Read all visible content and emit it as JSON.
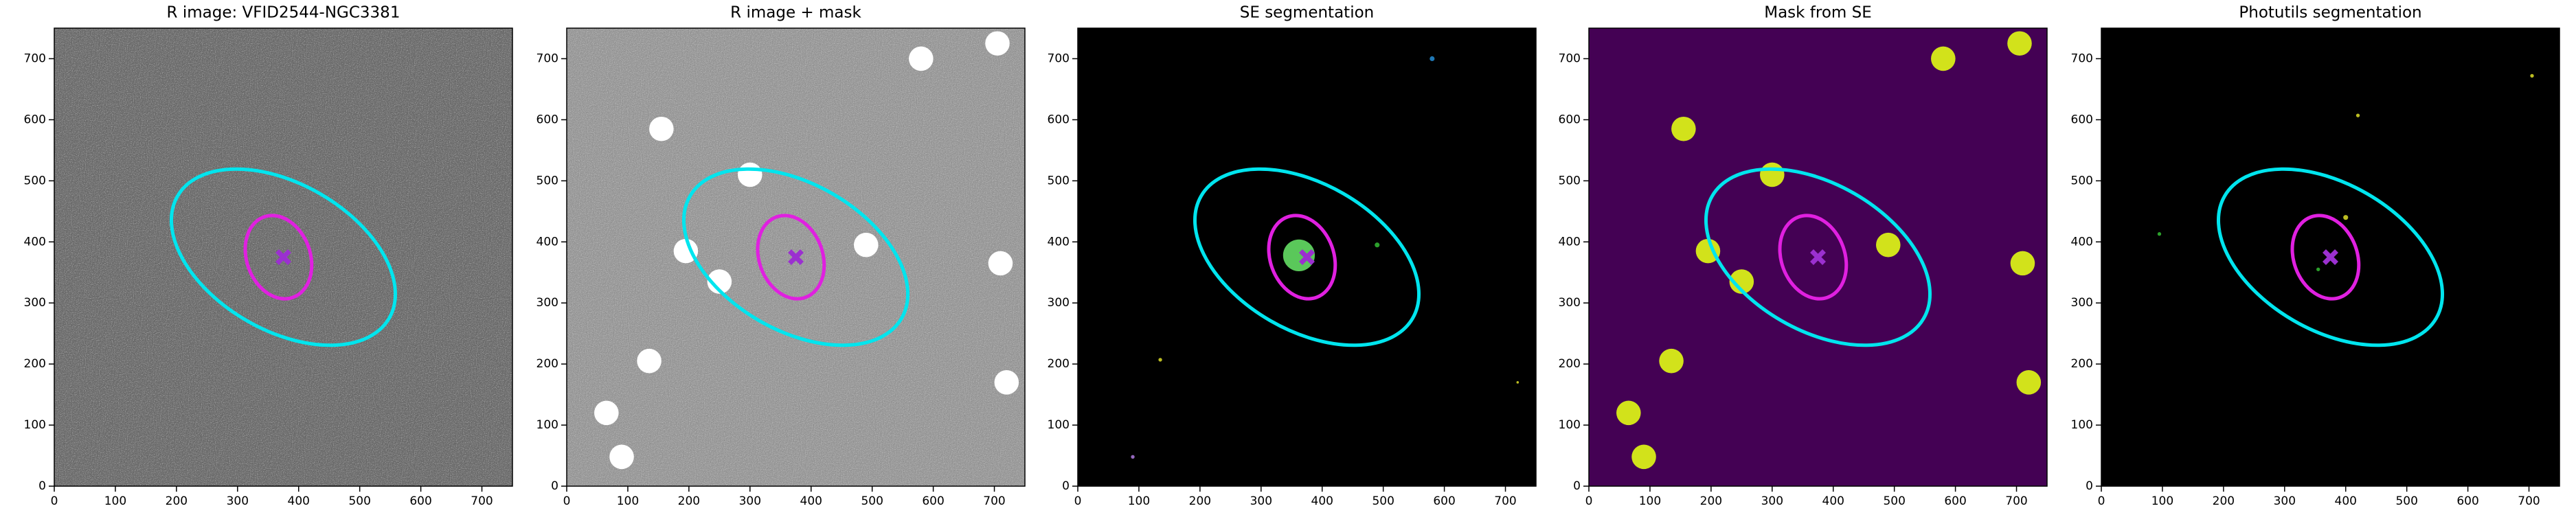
{
  "chart_data": [
    {
      "type": "image",
      "title": "R image: VFID2544-NGC3381",
      "background": "#6e6e6e",
      "noise": true,
      "xlim": [
        0,
        750
      ],
      "ylim": [
        0,
        750
      ],
      "xticks": [
        0,
        100,
        200,
        300,
        400,
        500,
        600,
        700
      ],
      "yticks": [
        0,
        100,
        200,
        300,
        400,
        500,
        600,
        700
      ],
      "ellipses": [
        {
          "color": "#00e5ee",
          "x": 375,
          "y": 375,
          "a": 200,
          "b": 120,
          "angle": -30
        },
        {
          "color": "#e020e0",
          "x": 367,
          "y": 375,
          "a": 70,
          "b": 52,
          "angle": -70
        }
      ],
      "marker": {
        "color": "#9b30d0",
        "x": 375,
        "y": 375
      }
    },
    {
      "type": "image",
      "title": "R image + mask",
      "background": "#9a9a9a",
      "noise": true,
      "xlim": [
        0,
        750
      ],
      "ylim": [
        0,
        750
      ],
      "xticks": [
        0,
        100,
        200,
        300,
        400,
        500,
        600,
        700
      ],
      "yticks": [
        0,
        100,
        200,
        300,
        400,
        500,
        600,
        700
      ],
      "masks": {
        "color": "#ffffff",
        "radius": 20,
        "x": [
          155,
          300,
          195,
          250,
          490,
          580,
          705,
          710,
          720,
          135,
          65,
          90
        ],
        "y": [
          585,
          510,
          385,
          335,
          395,
          700,
          725,
          365,
          170,
          205,
          120,
          48
        ]
      },
      "ellipses": [
        {
          "color": "#00e5ee",
          "x": 375,
          "y": 375,
          "a": 200,
          "b": 120,
          "angle": -30
        },
        {
          "color": "#e020e0",
          "x": 367,
          "y": 375,
          "a": 70,
          "b": 52,
          "angle": -70
        }
      ],
      "marker": {
        "color": "#9b30d0",
        "x": 375,
        "y": 375
      }
    },
    {
      "type": "image",
      "title": "SE segmentation",
      "background": "#000000",
      "xlim": [
        0,
        750
      ],
      "ylim": [
        0,
        750
      ],
      "xticks": [
        0,
        100,
        200,
        300,
        400,
        500,
        600,
        700
      ],
      "yticks": [
        0,
        100,
        200,
        300,
        400,
        500,
        600,
        700
      ],
      "segments": [
        {
          "color": "#5ac85a",
          "x": 362,
          "y": 378,
          "r": 26
        },
        {
          "color": "#1f77b4",
          "x": 580,
          "y": 700,
          "r": 4
        },
        {
          "color": "#2ca02c",
          "x": 490,
          "y": 395,
          "r": 4
        },
        {
          "color": "#bcbd22",
          "x": 135,
          "y": 207,
          "r": 3
        },
        {
          "color": "#9467bd",
          "x": 90,
          "y": 48,
          "r": 3
        },
        {
          "color": "#bcbd22",
          "x": 720,
          "y": 170,
          "r": 2
        }
      ],
      "ellipses": [
        {
          "color": "#00e5ee",
          "x": 375,
          "y": 375,
          "a": 200,
          "b": 120,
          "angle": -30
        },
        {
          "color": "#e020e0",
          "x": 367,
          "y": 375,
          "a": 70,
          "b": 52,
          "angle": -70
        }
      ],
      "marker": {
        "color": "#9b30d0",
        "x": 375,
        "y": 375
      }
    },
    {
      "type": "image",
      "title": "Mask from SE",
      "background": "#440154",
      "xlim": [
        0,
        750
      ],
      "ylim": [
        0,
        750
      ],
      "xticks": [
        0,
        100,
        200,
        300,
        400,
        500,
        600,
        700
      ],
      "yticks": [
        0,
        100,
        200,
        300,
        400,
        500,
        600,
        700
      ],
      "masks": {
        "color": "#d2e21b",
        "radius": 20,
        "x": [
          155,
          300,
          195,
          250,
          490,
          580,
          705,
          710,
          720,
          135,
          65,
          90
        ],
        "y": [
          585,
          510,
          385,
          335,
          395,
          700,
          725,
          365,
          170,
          205,
          120,
          48
        ]
      },
      "ellipses": [
        {
          "color": "#00e5ee",
          "x": 375,
          "y": 375,
          "a": 200,
          "b": 120,
          "angle": -30
        },
        {
          "color": "#e020e0",
          "x": 367,
          "y": 375,
          "a": 70,
          "b": 52,
          "angle": -70
        }
      ],
      "marker": {
        "color": "#9b30d0",
        "x": 375,
        "y": 375
      }
    },
    {
      "type": "image",
      "title": "Photutils segmentation",
      "background": "#000000",
      "xlim": [
        0,
        750
      ],
      "ylim": [
        0,
        750
      ],
      "xticks": [
        0,
        100,
        200,
        300,
        400,
        500,
        600,
        700
      ],
      "yticks": [
        0,
        100,
        200,
        300,
        400,
        500,
        600,
        700
      ],
      "segments": [
        {
          "color": "#2ca02c",
          "x": 95,
          "y": 413,
          "r": 3
        },
        {
          "color": "#bcbd22",
          "x": 420,
          "y": 607,
          "r": 3
        },
        {
          "color": "#bcbd22",
          "x": 705,
          "y": 672,
          "r": 3
        },
        {
          "color": "#bcbd22",
          "x": 400,
          "y": 440,
          "r": 4
        },
        {
          "color": "#2ca02c",
          "x": 355,
          "y": 355,
          "r": 3
        }
      ],
      "ellipses": [
        {
          "color": "#00e5ee",
          "x": 375,
          "y": 375,
          "a": 200,
          "b": 120,
          "angle": -30
        },
        {
          "color": "#e020e0",
          "x": 367,
          "y": 375,
          "a": 70,
          "b": 52,
          "angle": -70
        }
      ],
      "marker": {
        "color": "#9b30d0",
        "x": 375,
        "y": 375
      }
    }
  ]
}
